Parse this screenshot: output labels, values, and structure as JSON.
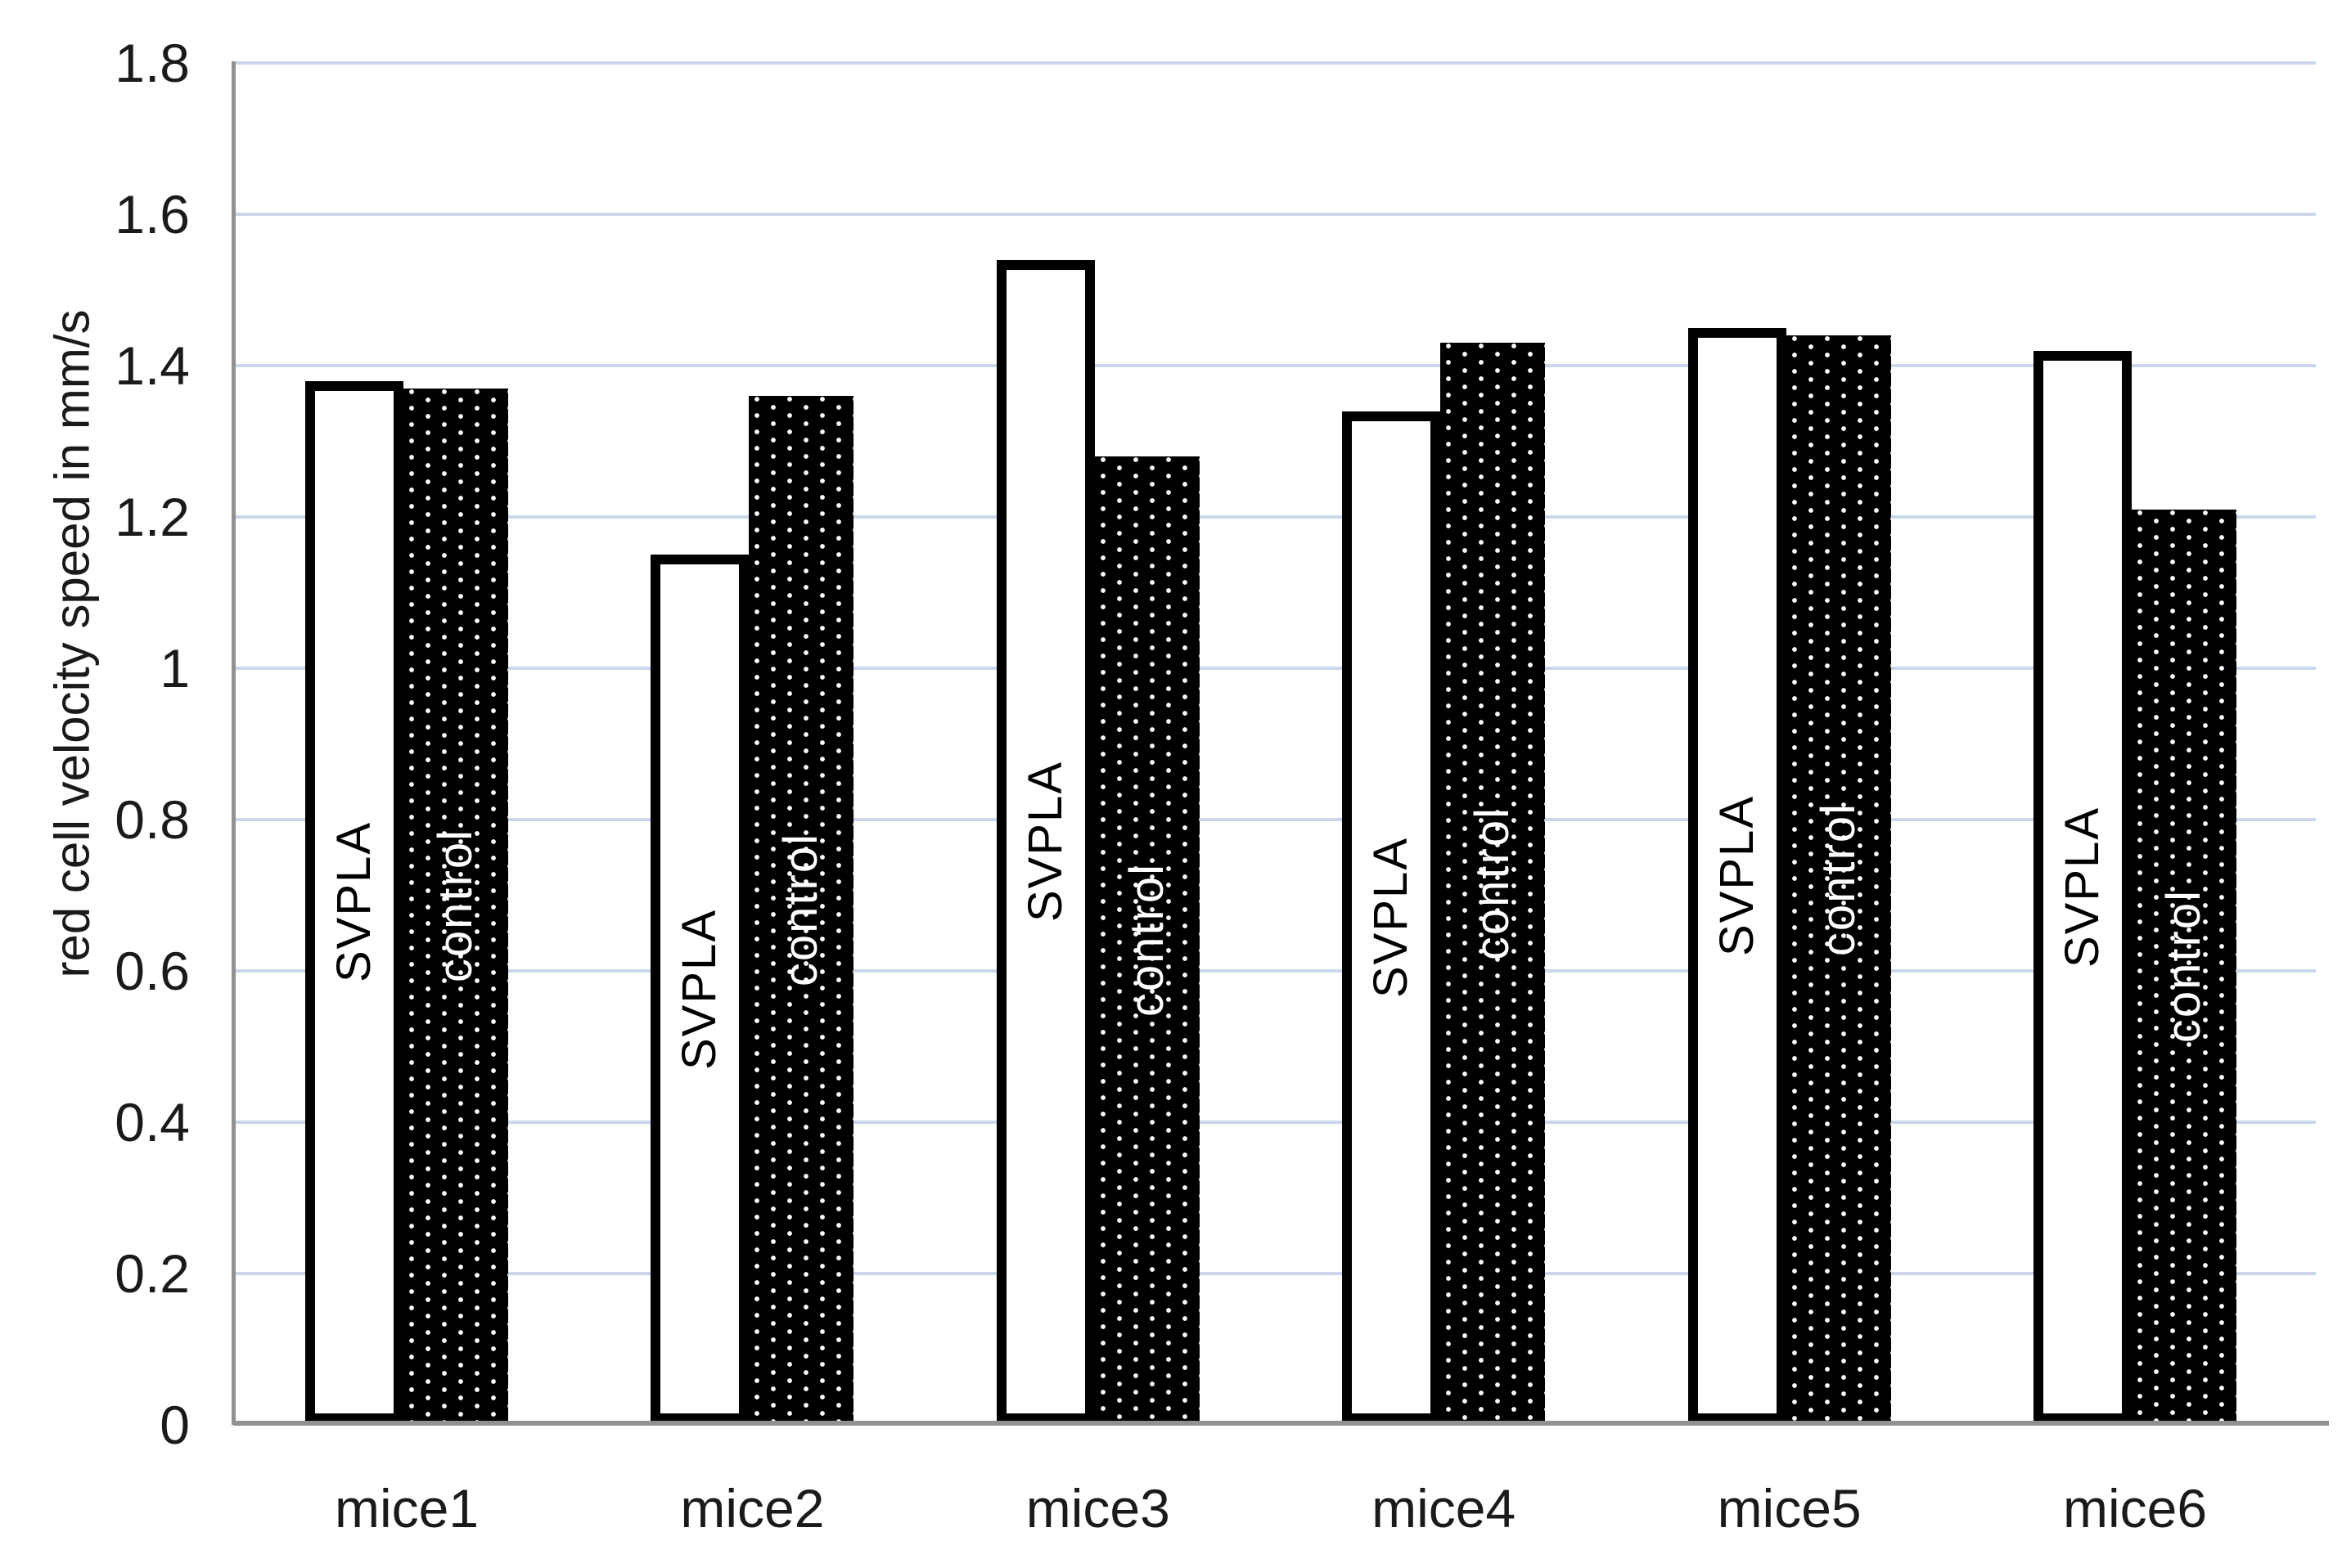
{
  "chart_data": {
    "type": "bar",
    "title": "",
    "xlabel": "",
    "ylabel": "red cell velocity speed in mm/s",
    "ylim": [
      0,
      1.8
    ],
    "ytick_step": 0.2,
    "ytick_labels": [
      "1.8",
      "1.6",
      "1.4",
      "1.2",
      "1",
      "0.8",
      "0.6",
      "0.4",
      "0.2",
      "0"
    ],
    "categories": [
      "mice1",
      "mice2",
      "mice3",
      "mice4",
      "mice5",
      "mice6"
    ],
    "series": [
      {
        "name": "SVPLA",
        "style": "white-outlined",
        "values": [
          1.38,
          1.15,
          1.54,
          1.34,
          1.45,
          1.42
        ]
      },
      {
        "name": "control",
        "style": "black-dotted",
        "values": [
          1.37,
          1.36,
          1.28,
          1.43,
          1.44,
          1.21
        ]
      }
    ],
    "bar_labels_inside_bars": true,
    "grid": true,
    "legend_position": "none",
    "colors": {
      "grid": "#c9d6ec",
      "axis": "#919191",
      "tick_text": "#1a1a1a",
      "svpla_fill": "#ffffff",
      "svpla_border": "#000000",
      "control_fill": "#000000",
      "control_dot": "#ffffff",
      "label_on_white_bar": "#000000",
      "label_on_black_bar": "#ffffff"
    }
  }
}
